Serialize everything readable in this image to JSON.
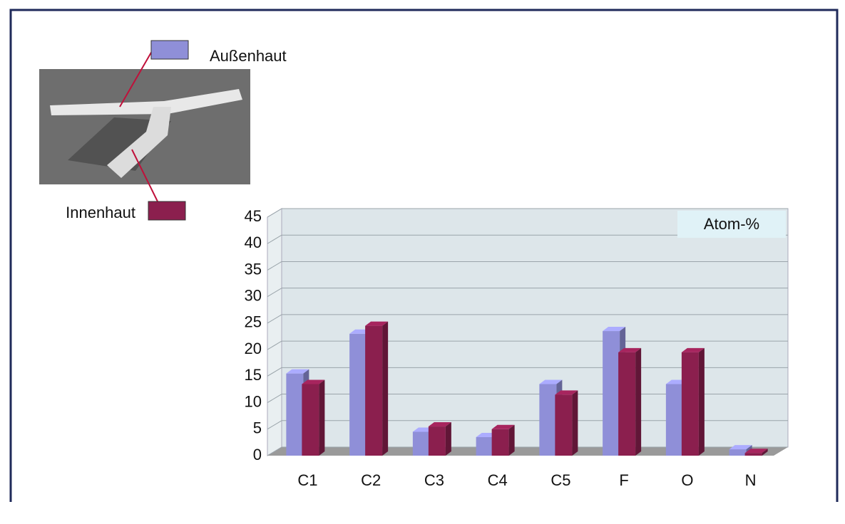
{
  "chart_data": {
    "type": "bar3d",
    "ylabel": "Atom-%",
    "categories": [
      "C1",
      "C2",
      "C3",
      "C4",
      "C5",
      "F",
      "O",
      "N"
    ],
    "series": [
      {
        "name": "Außenhaut",
        "color": "#8f8fd8",
        "values": [
          15.5,
          23,
          4.5,
          3.5,
          13.5,
          23.5,
          13.5,
          1.2
        ]
      },
      {
        "name": "Innenhaut",
        "color": "#8b1f4e",
        "values": [
          13.5,
          24.5,
          5.5,
          5,
          11.5,
          19.5,
          19.5,
          0.5
        ]
      }
    ],
    "ylim": [
      0,
      45
    ],
    "yticks": [
      0,
      5,
      10,
      15,
      20,
      25,
      30,
      35,
      40,
      45
    ],
    "grid": true
  }
}
